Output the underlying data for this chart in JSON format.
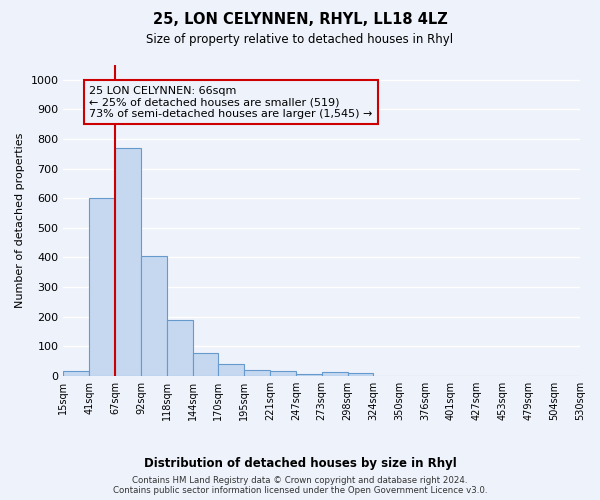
{
  "title": "25, LON CELYNNEN, RHYL, LL18 4LZ",
  "subtitle": "Size of property relative to detached houses in Rhyl",
  "xlabel_bottom": "Distribution of detached houses by size in Rhyl",
  "ylabel": "Number of detached properties",
  "bar_color": "#c5d8f0",
  "bar_edge_color": "#6699cc",
  "bins": [
    "15sqm",
    "41sqm",
    "67sqm",
    "92sqm",
    "118sqm",
    "144sqm",
    "170sqm",
    "195sqm",
    "221sqm",
    "247sqm",
    "273sqm",
    "298sqm",
    "324sqm",
    "350sqm",
    "376sqm",
    "401sqm",
    "427sqm",
    "453sqm",
    "479sqm",
    "504sqm",
    "530sqm"
  ],
  "values": [
    15,
    600,
    770,
    405,
    190,
    78,
    40,
    18,
    15,
    5,
    12,
    8,
    0,
    0,
    0,
    0,
    0,
    0,
    0,
    0
  ],
  "ylim": [
    0,
    1050
  ],
  "yticks": [
    0,
    100,
    200,
    300,
    400,
    500,
    600,
    700,
    800,
    900,
    1000
  ],
  "property_line_color": "#cc0000",
  "property_line_bin_index": 2,
  "annotation_text": "25 LON CELYNNEN: 66sqm\n← 25% of detached houses are smaller (519)\n73% of semi-detached houses are larger (1,545) →",
  "annotation_box_color": "#cc0000",
  "footer_line1": "Contains HM Land Registry data © Crown copyright and database right 2024.",
  "footer_line2": "Contains public sector information licensed under the Open Government Licence v3.0.",
  "background_color": "#eef2fb",
  "grid_color": "#ffffff"
}
